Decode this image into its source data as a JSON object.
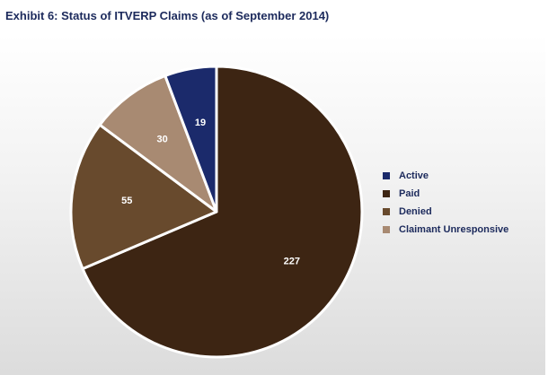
{
  "chart_data": {
    "type": "pie",
    "title": "Exhibit 6: Status of ITVERP Claims (as of September 2014)",
    "slices": [
      {
        "name": "Active",
        "value": 19,
        "color": "#1b2a6b"
      },
      {
        "name": "Paid",
        "value": 227,
        "color": "#3d2513"
      },
      {
        "name": "Denied",
        "value": 55,
        "color": "#684a2d"
      },
      {
        "name": "Claimant Unresponsive",
        "value": 30,
        "color": "#a88a72"
      }
    ],
    "legend_position": "right"
  }
}
